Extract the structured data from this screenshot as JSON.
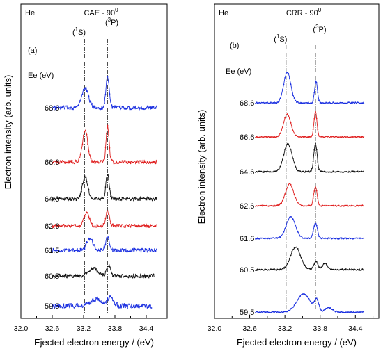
{
  "figure": {
    "ylabel": "Electron intensity (arb. units)",
    "colors": {
      "blue": "#1a2fe0",
      "red": "#e02020",
      "black": "#111111"
    }
  },
  "chart_data": [
    {
      "type": "line",
      "panel_label": "(a)",
      "atom": "He",
      "title_main": "CAE - 90",
      "title_sup": "0",
      "xlabel": "Ejected electron energy / (eV)",
      "ylabel": "Electron intensity (arb. units)",
      "xlim": [
        32.0,
        34.8
      ],
      "xticks": [
        "32.0",
        "32.6",
        "33.2",
        "33.8",
        "34.4"
      ],
      "xtick_values": [
        32.0,
        32.6,
        33.2,
        33.8,
        34.4
      ],
      "energy_header": "Ee (eV)",
      "peak_lines": [
        {
          "label_pre": "(",
          "label_sup": "1",
          "label_post": "S)",
          "x": 33.22
        },
        {
          "label_pre": "(",
          "label_sup": "3",
          "label_post": "P)",
          "x": 33.66
        }
      ],
      "series": [
        {
          "name": "68.6",
          "color": "blue",
          "offset": 0.0,
          "x_start": 32.6,
          "x_end": 34.6,
          "noise": 0.1,
          "peaks": [
            {
              "x": 33.23,
              "amp": 1.1,
              "w": 0.09
            },
            {
              "x": 33.66,
              "amp": 1.75,
              "w": 0.045
            }
          ]
        },
        {
          "name": "66.6",
          "color": "red",
          "offset": 0.0,
          "x_start": 32.6,
          "x_end": 34.6,
          "noise": 0.1,
          "peaks": [
            {
              "x": 33.23,
              "amp": 1.8,
              "w": 0.07
            },
            {
              "x": 33.66,
              "amp": 1.95,
              "w": 0.04
            }
          ]
        },
        {
          "name": "64.6",
          "color": "black",
          "offset": 0.0,
          "x_start": 32.6,
          "x_end": 34.6,
          "noise": 0.1,
          "peaks": [
            {
              "x": 33.23,
              "amp": 1.25,
              "w": 0.07
            },
            {
              "x": 33.66,
              "amp": 1.35,
              "w": 0.045
            }
          ]
        },
        {
          "name": "62.6",
          "color": "red",
          "offset": 0.0,
          "x_start": 32.6,
          "x_end": 34.6,
          "noise": 0.09,
          "peaks": [
            {
              "x": 33.26,
              "amp": 0.75,
              "w": 0.07
            },
            {
              "x": 33.66,
              "amp": 0.8,
              "w": 0.05
            }
          ]
        },
        {
          "name": "61.5",
          "color": "blue",
          "offset": 0.0,
          "x_start": 32.6,
          "x_end": 34.6,
          "noise": 0.1,
          "peaks": [
            {
              "x": 33.32,
              "amp": 0.65,
              "w": 0.08
            },
            {
              "x": 33.66,
              "amp": 0.75,
              "w": 0.05
            }
          ]
        },
        {
          "name": "60.5",
          "color": "black",
          "offset": 0.0,
          "x_start": 32.6,
          "x_end": 34.55,
          "noise": 0.1,
          "peaks": [
            {
              "x": 33.38,
              "amp": 0.45,
              "w": 0.12
            },
            {
              "x": 33.68,
              "amp": 0.6,
              "w": 0.05
            }
          ]
        },
        {
          "name": "59.5",
          "color": "blue",
          "offset": 0.0,
          "x_start": 32.6,
          "x_end": 34.5,
          "noise": 0.12,
          "peaks": [
            {
              "x": 33.45,
              "amp": 0.35,
              "w": 0.15
            },
            {
              "x": 33.72,
              "amp": 0.45,
              "w": 0.08
            }
          ]
        }
      ]
    },
    {
      "type": "line",
      "panel_label": "(b)",
      "atom": "He",
      "title_main": "CRR - 90",
      "title_sup": "0",
      "xlabel": "Ejected electron energy / (eV)",
      "ylabel": "Electron intensity (arb. units)",
      "xlim": [
        32.0,
        34.8
      ],
      "xticks": [
        "32.0",
        "32.6",
        "33.2",
        "33.8",
        "34.4"
      ],
      "xtick_values": [
        32.0,
        32.6,
        33.2,
        33.8,
        34.4
      ],
      "energy_header": "Ee  (eV)",
      "peak_lines": [
        {
          "label_pre": "(",
          "label_sup": "1",
          "label_post": "S)",
          "x": 33.22
        },
        {
          "label_pre": "(",
          "label_sup": "3",
          "label_post": "P)",
          "x": 33.72
        }
      ],
      "series": [
        {
          "name": "68.6",
          "color": "blue",
          "x_start": 32.7,
          "x_end": 34.55,
          "noise": 0.035,
          "peaks": [
            {
              "x": 33.24,
              "amp": 1.7,
              "w": 0.085
            },
            {
              "x": 33.73,
              "amp": 1.2,
              "w": 0.035
            }
          ]
        },
        {
          "name": "66.6",
          "color": "red",
          "x_start": 32.7,
          "x_end": 34.55,
          "noise": 0.035,
          "peaks": [
            {
              "x": 33.24,
              "amp": 1.25,
              "w": 0.09
            },
            {
              "x": 33.72,
              "amp": 1.4,
              "w": 0.035
            }
          ]
        },
        {
          "name": "64.6",
          "color": "black",
          "x_start": 32.7,
          "x_end": 34.55,
          "noise": 0.04,
          "peaks": [
            {
              "x": 33.25,
              "amp": 1.55,
              "w": 0.1
            },
            {
              "x": 33.72,
              "amp": 1.55,
              "w": 0.04
            }
          ]
        },
        {
          "name": "62.6",
          "color": "red",
          "x_start": 32.7,
          "x_end": 34.55,
          "noise": 0.035,
          "peaks": [
            {
              "x": 33.28,
              "amp": 1.2,
              "w": 0.1
            },
            {
              "x": 33.72,
              "amp": 1.05,
              "w": 0.04
            }
          ]
        },
        {
          "name": "61.6",
          "color": "blue",
          "x_start": 32.7,
          "x_end": 34.55,
          "noise": 0.035,
          "peaks": [
            {
              "x": 33.3,
              "amp": 1.2,
              "w": 0.11
            },
            {
              "x": 33.72,
              "amp": 0.85,
              "w": 0.045
            }
          ]
        },
        {
          "name": "60.5",
          "color": "black",
          "x_start": 32.7,
          "x_end": 34.55,
          "noise": 0.04,
          "peaks": [
            {
              "x": 33.38,
              "amp": 1.25,
              "w": 0.12
            },
            {
              "x": 33.73,
              "amp": 0.45,
              "w": 0.05
            },
            {
              "x": 33.88,
              "amp": 0.35,
              "w": 0.06
            }
          ]
        },
        {
          "name": "59.5",
          "color": "blue",
          "x_start": 32.7,
          "x_end": 34.55,
          "noise": 0.035,
          "peaks": [
            {
              "x": 33.52,
              "amp": 1.0,
              "w": 0.16
            },
            {
              "x": 33.74,
              "amp": 0.6,
              "w": 0.05
            },
            {
              "x": 33.95,
              "amp": 0.25,
              "w": 0.08
            }
          ]
        }
      ]
    }
  ]
}
